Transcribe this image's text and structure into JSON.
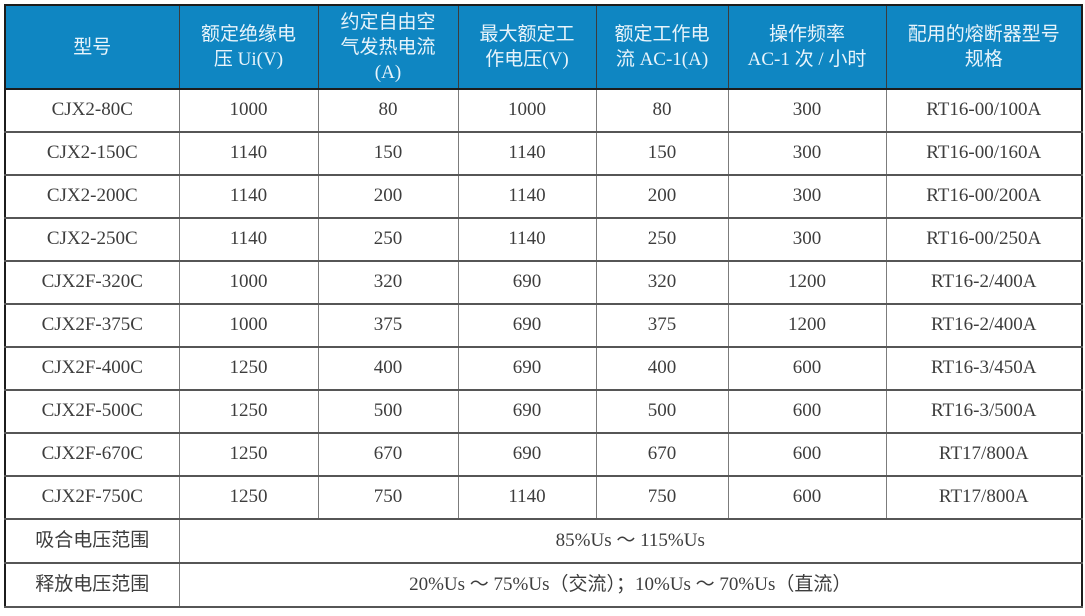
{
  "colors": {
    "header_bg": "#0f86c2",
    "header_text": "#e8f4fb",
    "body_text": "#3d3d3d",
    "grid_line": "#7c7c7c",
    "outer_border": "#1c1c1c"
  },
  "table": {
    "columns": [
      "型号",
      "额定绝缘电\n压 Ui(V)",
      "约定自由空\n气发热电流\n(A)",
      "最大额定工\n作电压(V)",
      "额定工作电\n流 AC-1(A)",
      "操作频率\nAC-1 次 / 小时",
      "配用的熔断器型号\n规格"
    ],
    "rows": [
      [
        "CJX2-80C",
        "1000",
        "80",
        "1000",
        "80",
        "300",
        "RT16-00/100A"
      ],
      [
        "CJX2-150C",
        "1140",
        "150",
        "1140",
        "150",
        "300",
        "RT16-00/160A"
      ],
      [
        "CJX2-200C",
        "1140",
        "200",
        "1140",
        "200",
        "300",
        "RT16-00/200A"
      ],
      [
        "CJX2-250C",
        "1140",
        "250",
        "1140",
        "250",
        "300",
        "RT16-00/250A"
      ],
      [
        "CJX2F-320C",
        "1000",
        "320",
        "690",
        "320",
        "1200",
        "RT16-2/400A"
      ],
      [
        "CJX2F-375C",
        "1000",
        "375",
        "690",
        "375",
        "1200",
        "RT16-2/400A"
      ],
      [
        "CJX2F-400C",
        "1250",
        "400",
        "690",
        "400",
        "600",
        "RT16-3/450A"
      ],
      [
        "CJX2F-500C",
        "1250",
        "500",
        "690",
        "500",
        "600",
        "RT16-3/500A"
      ],
      [
        "CJX2F-670C",
        "1250",
        "670",
        "690",
        "670",
        "600",
        "RT17/800A"
      ],
      [
        "CJX2F-750C",
        "1250",
        "750",
        "1140",
        "750",
        "600",
        "RT17/800A"
      ]
    ],
    "footer_rows": [
      {
        "label": "吸合电压范围",
        "value": "85%Us ～ 115%Us"
      },
      {
        "label": "释放电压范围",
        "value": "20%Us ～ 75%Us（交流）；10%Us ～ 70%Us（直流）"
      }
    ]
  }
}
